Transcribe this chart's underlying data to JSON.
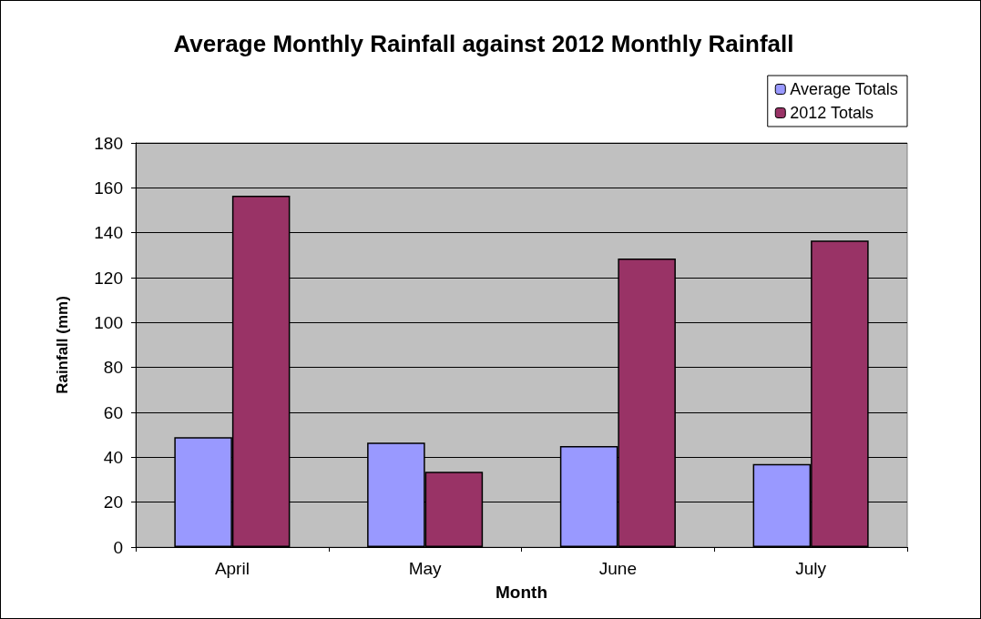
{
  "chart_data": {
    "type": "bar",
    "title": "Average Monthly Rainfall against 2012 Monthly Rainfall",
    "xlabel": "Month",
    "ylabel": "Rainfall (mm)",
    "categories": [
      "April",
      "May",
      "June",
      "July"
    ],
    "series": [
      {
        "name": "Average Totals",
        "color": "#9999ff",
        "values": [
          49,
          46.5,
          45,
          37
        ]
      },
      {
        "name": "2012 Totals",
        "color": "#993366",
        "values": [
          156.5,
          33.5,
          128.5,
          136.5
        ]
      }
    ],
    "ylim": [
      0,
      180
    ],
    "yticks": [
      0,
      20,
      40,
      60,
      80,
      100,
      120,
      140,
      160,
      180
    ],
    "grid": "y",
    "legend": "top right"
  }
}
